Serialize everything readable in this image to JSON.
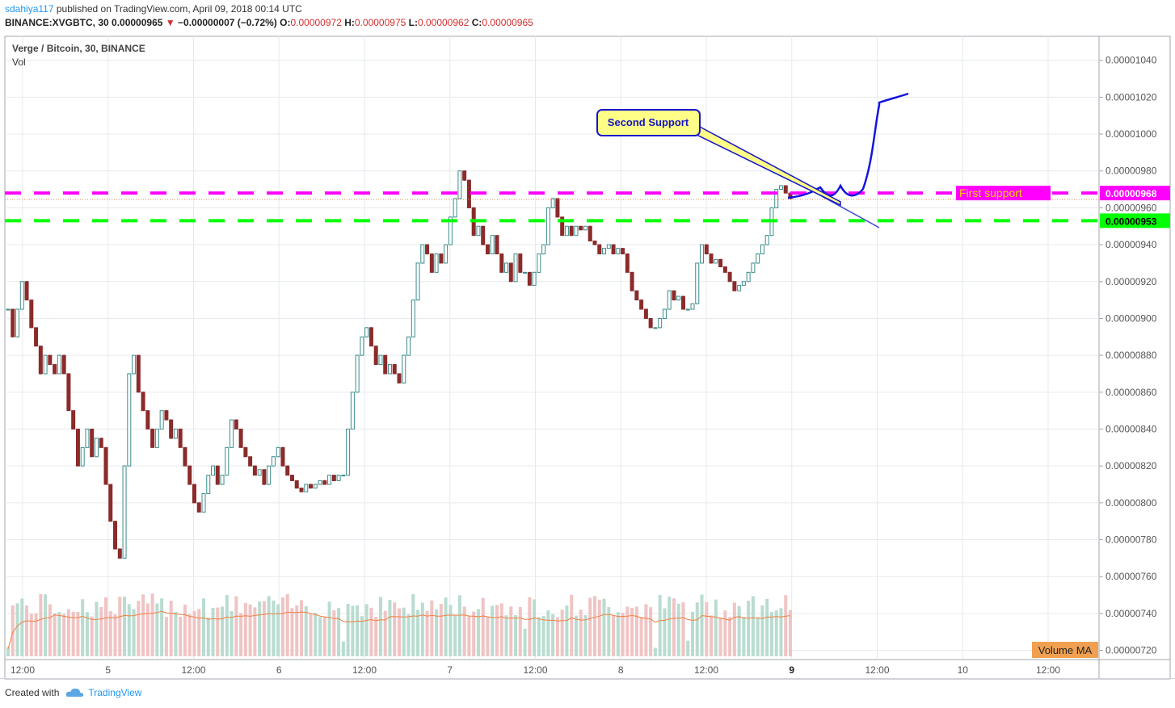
{
  "header": {
    "user": "sdahiya117",
    "published": "published on TradingView.com, April 09, 2018 00:14 UTC",
    "symbol": "BINANCE:XVGBTC, 30",
    "last": "0.00000965",
    "change": "−0.00000007 (−0.72%)",
    "o_label": "O:",
    "o": "0.00000972",
    "h_label": "H:",
    "h": "0.00000975",
    "l_label": "L:",
    "l": "0.00000962",
    "c_label": "C:",
    "c": "0.00000965"
  },
  "legend": {
    "title": "Verge / Bitcoin, 30, BINANCE",
    "vol": "Vol"
  },
  "footer": {
    "created": "Created with",
    "brand": "TradingView"
  },
  "colors": {
    "up": "#3c8c8c",
    "down": "#8b2b2b",
    "magenta": "#ff00ff",
    "green": "#00ff00",
    "blue": "#0000ff",
    "grid": "#e6eaee",
    "vol_up": "#b9dcd0",
    "vol_down": "#f0c4c4",
    "vol_ma": "#f08040"
  },
  "chart_data": {
    "type": "candlestick",
    "title": "Verge / Bitcoin, 30, BINANCE",
    "ylim": [
      7.15e-06,
      1.053e-05
    ],
    "y_ticks": [
      "0.00001040",
      "0.00001020",
      "0.00001000",
      "0.00000980",
      "0.00000960",
      "0.00000940",
      "0.00000920",
      "0.00000900",
      "0.00000880",
      "0.00000860",
      "0.00000840",
      "0.00000820",
      "0.00000800",
      "0.00000780",
      "0.00000760",
      "0.00000740",
      "0.00000720"
    ],
    "x_ticks": [
      "12:00",
      "5",
      "12:00",
      "6",
      "12:00",
      "7",
      "12:00",
      "8",
      "12:00",
      "9",
      "12:00",
      "10",
      "12:00"
    ],
    "horizontal_lines": [
      {
        "name": "First support",
        "price": "0.00000968",
        "color": "#ff00ff",
        "style": "dashed"
      },
      {
        "name": "",
        "price": "0.00000953",
        "color": "#00ff00",
        "style": "dashed"
      }
    ],
    "annotations": {
      "callout": "Second Support",
      "first_support": "First support",
      "volume_ma": "Volume MA"
    },
    "price_path": [
      9.05e-06,
      8.9e-06,
      9.05e-06,
      9.2e-06,
      9.1e-06,
      8.95e-06,
      8.85e-06,
      8.7e-06,
      8.8e-06,
      8.75e-06,
      8.7e-06,
      8.8e-06,
      8.7e-06,
      8.5e-06,
      8.4e-06,
      8.2e-06,
      8.3e-06,
      8.4e-06,
      8.25e-06,
      8.35e-06,
      8.3e-06,
      8.1e-06,
      7.9e-06,
      7.75e-06,
      7.7e-06,
      8.2e-06,
      8.7e-06,
      8.8e-06,
      8.6e-06,
      8.5e-06,
      8.4e-06,
      8.3e-06,
      8.4e-06,
      8.5e-06,
      8.45e-06,
      8.35e-06,
      8.4e-06,
      8.3e-06,
      8.2e-06,
      8.1e-06,
      8e-06,
      7.95e-06,
      8.05e-06,
      8.15e-06,
      8.2e-06,
      8.1e-06,
      8.15e-06,
      8.3e-06,
      8.45e-06,
      8.4e-06,
      8.3e-06,
      8.25e-06,
      8.2e-06,
      8.15e-06,
      8.18e-06,
      8.1e-06,
      8.2e-06,
      8.25e-06,
      8.3e-06,
      8.2e-06,
      8.15e-06,
      8.12e-06,
      8.08e-06,
      8.06e-06,
      8.1e-06,
      8.08e-06,
      8.1e-06,
      8.12e-06,
      8.1e-06,
      8.15e-06,
      8.12e-06,
      8.15e-06,
      8.15e-06,
      8.4e-06,
      8.6e-06,
      8.8e-06,
      8.9e-06,
      8.95e-06,
      8.85e-06,
      8.75e-06,
      8.8e-06,
      8.7e-06,
      8.75e-06,
      8.7e-06,
      8.65e-06,
      8.8e-06,
      8.9e-06,
      9.1e-06,
      9.3e-06,
      9.4e-06,
      9.35e-06,
      9.25e-06,
      9.35e-06,
      9.3e-06,
      9.4e-06,
      9.55e-06,
      9.65e-06,
      9.8e-06,
      9.75e-06,
      9.6e-06,
      9.45e-06,
      9.5e-06,
      9.4e-06,
      9.35e-06,
      9.45e-06,
      9.35e-06,
      9.25e-06,
      9.3e-06,
      9.2e-06,
      9.35e-06,
      9.25e-06,
      9.25e-06,
      9.18e-06,
      9.25e-06,
      9.35e-06,
      9.4e-06,
      9.6e-06,
      9.65e-06,
      9.55e-06,
      9.45e-06,
      9.5e-06,
      9.45e-06,
      9.5e-06,
      9.48e-06,
      9.5e-06,
      9.42e-06,
      9.4e-06,
      9.35e-06,
      9.38e-06,
      9.4e-06,
      9.35e-06,
      9.38e-06,
      9.35e-06,
      9.25e-06,
      9.15e-06,
      9.1e-06,
      9.05e-06,
      9e-06,
      8.95e-06,
      8.95e-06,
      9e-06,
      9.05e-06,
      9.15e-06,
      9.1e-06,
      9.12e-06,
      9.05e-06,
      9.05e-06,
      9.08e-06,
      9.3e-06,
      9.4e-06,
      9.35e-06,
      9.3e-06,
      9.32e-06,
      9.28e-06,
      9.25e-06,
      9.2e-06,
      9.15e-06,
      9.18e-06,
      9.2e-06,
      9.25e-06,
      9.3e-06,
      9.35e-06,
      9.4e-06,
      9.45e-06,
      9.6e-06,
      9.7e-06,
      9.72e-06,
      9.68e-06,
      9.65e-06
    ]
  }
}
